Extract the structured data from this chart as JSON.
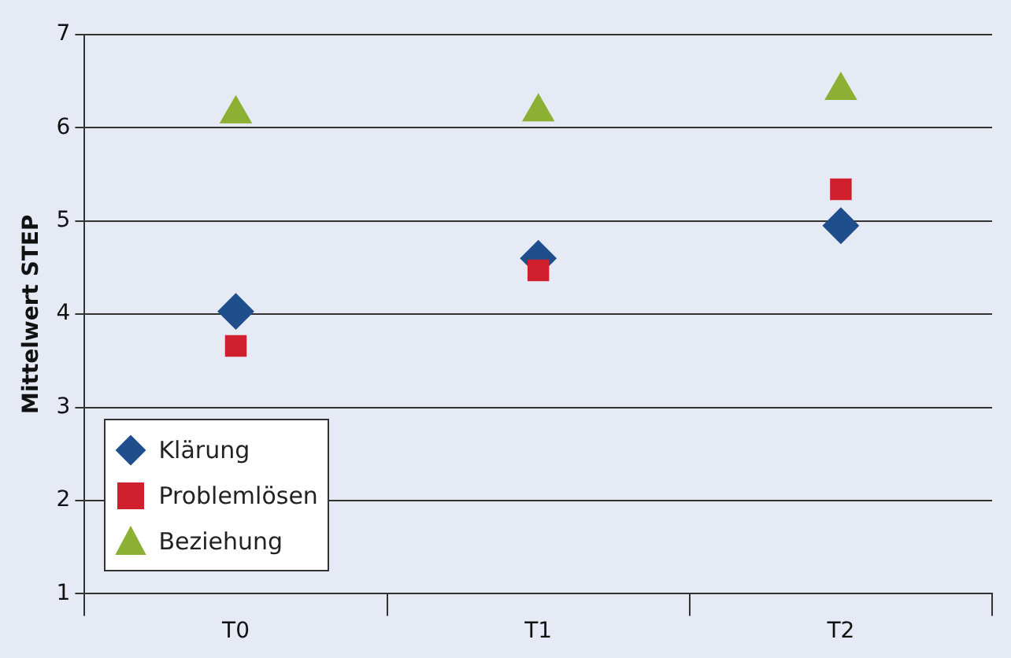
{
  "chart_data": {
    "type": "scatter",
    "ylabel": "Mittelwert STEP",
    "categories": [
      "T0",
      "T1",
      "T2"
    ],
    "series": [
      {
        "name": "Klärung",
        "color": "#1f4e8c",
        "marker": "diamond",
        "values": [
          4.03,
          4.6,
          4.95
        ]
      },
      {
        "name": "Problemlösen",
        "color": "#d0202e",
        "marker": "square",
        "values": [
          3.66,
          4.47,
          5.34
        ]
      },
      {
        "name": "Beziehung",
        "color": "#8cb033",
        "marker": "triangle",
        "values": [
          6.15,
          6.17,
          6.4
        ]
      }
    ],
    "ylim": [
      1,
      7
    ],
    "yticks": [
      1,
      2,
      3,
      4,
      5,
      6,
      7
    ],
    "grid": "y",
    "legend": "bottom left"
  }
}
